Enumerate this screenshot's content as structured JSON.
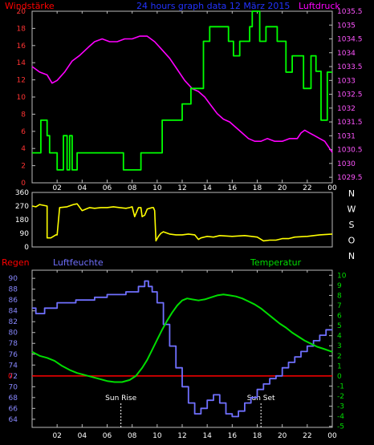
{
  "header": {
    "left_label": "Windstärke",
    "title": "24 hours graph data  12 März 2015",
    "right_label": "Luftdruck"
  },
  "lower_header": {
    "rain_label": "Regen",
    "humidity_label": "Luftfeuchte",
    "temperature_label": "Temperatur"
  },
  "colors": {
    "wind_speed": "#00ff00",
    "pressure": "#ff00ff",
    "wind_dir": "#ffff00",
    "humidity": "#7070ff",
    "temperature": "#00dd00",
    "rain": "#ff0000",
    "axis": "#ffffff",
    "frame": "#bbbbbb",
    "sun_marker": "#ffffff"
  },
  "chart_data": [
    {
      "id": "wind-pressure",
      "type": "line",
      "x_ticks": [
        "02",
        "04",
        "06",
        "08",
        "10",
        "12",
        "14",
        "16",
        "18",
        "20",
        "22",
        "00"
      ],
      "y_left": {
        "label": "Windstärke",
        "range": [
          0,
          20
        ],
        "ticks": [
          "0",
          "2",
          "4",
          "6",
          "8",
          "10",
          "12",
          "14",
          "16",
          "18",
          "20"
        ]
      },
      "y_right": {
        "label": "Luftdruck",
        "range": [
          1029.3,
          1035.5
        ],
        "ticks": [
          "1029.5",
          "1030",
          "1030.5",
          "1031",
          "1031.5",
          "1032",
          "1032.5",
          "1033",
          "1033.5",
          "1034",
          "1034.5",
          "1035",
          "1035.5"
        ]
      },
      "series": [
        {
          "axis": "left",
          "kind": "step",
          "x": [
            0,
            0.7,
            0.7,
            1.2,
            1.2,
            1.4,
            1.4,
            2.0,
            2.0,
            2.5,
            2.5,
            2.8,
            2.8,
            3.0,
            3.0,
            3.2,
            3.2,
            3.6,
            3.6,
            7.3,
            7.3,
            8.7,
            8.7,
            10.4,
            10.4,
            12.0,
            12.0,
            12.7,
            12.7,
            13.7,
            13.7,
            14.2,
            14.2,
            15.7,
            15.7,
            16.1,
            16.1,
            16.6,
            16.6,
            17.4,
            17.4,
            17.6,
            17.6,
            18.2,
            18.2,
            18.7,
            18.7,
            19.6,
            19.6,
            20.3,
            20.3,
            20.8,
            20.8,
            21.7,
            21.7,
            22.3,
            22.3,
            22.7,
            22.7,
            23.1,
            23.1,
            23.6,
            23.6,
            24
          ],
          "y": [
            3.5,
            3.5,
            7.3,
            7.3,
            5.5,
            5.5,
            3.5,
            3.5,
            1.5,
            1.5,
            5.5,
            5.5,
            1.5,
            1.5,
            5.5,
            5.5,
            1.5,
            1.5,
            3.5,
            3.5,
            1.5,
            1.5,
            3.5,
            3.5,
            7.3,
            7.3,
            9.2,
            9.2,
            11.0,
            11.0,
            16.5,
            16.5,
            18.2,
            18.2,
            16.5,
            16.5,
            14.8,
            14.8,
            16.5,
            16.5,
            18.2,
            18.2,
            20.0,
            20.0,
            16.5,
            16.5,
            18.2,
            18.2,
            16.5,
            16.5,
            12.9,
            12.9,
            14.8,
            14.8,
            11.0,
            11.0,
            14.8,
            14.8,
            13.0,
            13.0,
            7.3,
            7.3,
            12.9,
            12.9
          ]
        },
        {
          "axis": "right",
          "kind": "line",
          "x": [
            0,
            0.6,
            1.2,
            1.6,
            2.0,
            2.6,
            3.2,
            3.8,
            4.5,
            5.0,
            5.6,
            6.2,
            6.8,
            7.4,
            8.0,
            8.6,
            9.2,
            9.8,
            10.4,
            11.0,
            11.6,
            12.2,
            12.8,
            13.3,
            13.8,
            14.3,
            14.8,
            15.3,
            15.8,
            16.3,
            16.8,
            17.3,
            17.8,
            18.3,
            18.8,
            19.4,
            20.0,
            20.6,
            21.2,
            21.5,
            21.8,
            22.2,
            22.6,
            23.0,
            23.4,
            23.7,
            24.0
          ],
          "y": [
            1033.5,
            1033.3,
            1033.2,
            1032.9,
            1033.0,
            1033.3,
            1033.7,
            1033.9,
            1034.2,
            1034.4,
            1034.5,
            1034.4,
            1034.4,
            1034.5,
            1034.5,
            1034.6,
            1034.6,
            1034.4,
            1034.1,
            1033.8,
            1033.4,
            1033.0,
            1032.7,
            1032.6,
            1032.4,
            1032.1,
            1031.8,
            1031.6,
            1031.5,
            1031.3,
            1031.1,
            1030.9,
            1030.8,
            1030.8,
            1030.9,
            1030.8,
            1030.8,
            1030.9,
            1030.9,
            1031.1,
            1031.2,
            1031.1,
            1031.0,
            1030.9,
            1030.8,
            1030.6,
            1030.4
          ]
        }
      ]
    },
    {
      "id": "wind-direction",
      "type": "line",
      "x_ticks": [
        "02",
        "04",
        "06",
        "08",
        "10",
        "12",
        "14",
        "16",
        "18",
        "20",
        "22",
        "00"
      ],
      "y_left": {
        "range": [
          0,
          360
        ],
        "ticks": [
          "0",
          "90",
          "180",
          "270",
          "360"
        ]
      },
      "y_right": {
        "ticks": [
          "N",
          "W",
          "S",
          "O",
          "N"
        ]
      },
      "series": [
        {
          "x": [
            0,
            0.3,
            0.6,
            1.2,
            1.2,
            1.5,
            1.9,
            2.0,
            2.2,
            2.8,
            3.3,
            3.6,
            4.0,
            4.3,
            4.6,
            5.0,
            5.5,
            6.0,
            6.5,
            7.0,
            7.5,
            7.8,
            8.0,
            8.2,
            8.5,
            8.7,
            8.8,
            9.0,
            9.2,
            9.4,
            9.6,
            9.7,
            9.8,
            9.9,
            10.1,
            10.3,
            10.5,
            11.0,
            11.5,
            12.0,
            12.5,
            13.0,
            13.3,
            13.5,
            14.0,
            14.5,
            15.0,
            16.0,
            17.0,
            18.0,
            18.5,
            19.0,
            19.5,
            20.0,
            20.5,
            21.0,
            22.0,
            23.0,
            24.0
          ],
          "y": [
            270,
            265,
            280,
            270,
            60,
            60,
            80,
            80,
            260,
            265,
            280,
            285,
            240,
            250,
            260,
            255,
            260,
            260,
            265,
            260,
            255,
            260,
            265,
            200,
            260,
            260,
            200,
            210,
            250,
            255,
            260,
            260,
            240,
            40,
            70,
            90,
            100,
            85,
            80,
            80,
            85,
            80,
            50,
            60,
            70,
            65,
            75,
            70,
            75,
            65,
            40,
            45,
            45,
            55,
            55,
            65,
            70,
            80,
            85
          ]
        }
      ]
    },
    {
      "id": "rain-humidity-temperature",
      "type": "line",
      "x_ticks": [
        "02",
        "04",
        "06",
        "08",
        "10",
        "12",
        "14",
        "16",
        "18",
        "20",
        "22",
        "00"
      ],
      "y_left": {
        "label": "Luftfeuchte",
        "range": [
          62.5,
          91.5
        ],
        "ticks": [
          "64",
          "66",
          "68",
          "70",
          "72",
          "74",
          "76",
          "78",
          "80",
          "82",
          "84",
          "86",
          "88",
          "90"
        ]
      },
      "y_right": {
        "label": "Temperatur",
        "range": [
          -5.1,
          10.5
        ],
        "ticks": [
          "-5",
          "-4",
          "-3",
          "-2",
          "-1",
          "0",
          "1",
          "2",
          "3",
          "4",
          "5",
          "6",
          "7",
          "8",
          "9",
          "10"
        ]
      },
      "rain_label": "0",
      "series": [
        {
          "name": "Luftfeuchte",
          "axis": "left",
          "kind": "step",
          "x": [
            0,
            0.3,
            0.3,
            1.0,
            1.0,
            2.0,
            2.0,
            3.5,
            3.5,
            5.0,
            5.0,
            6.0,
            6.0,
            7.5,
            7.5,
            8.5,
            8.5,
            9.0,
            9.0,
            9.3,
            9.3,
            9.6,
            9.6,
            10.0,
            10.0,
            10.5,
            10.5,
            11.0,
            11.0,
            11.5,
            11.5,
            12.0,
            12.0,
            12.5,
            12.5,
            13.0,
            13.0,
            13.5,
            13.5,
            14.0,
            14.0,
            14.5,
            14.5,
            15.0,
            15.0,
            15.5,
            15.5,
            16.0,
            16.0,
            16.5,
            16.5,
            17.0,
            17.0,
            17.5,
            17.5,
            18.0,
            18.0,
            18.5,
            18.5,
            19.0,
            19.0,
            19.5,
            19.5,
            20.0,
            20.0,
            20.5,
            20.5,
            21.0,
            21.0,
            21.5,
            21.5,
            22.0,
            22.0,
            22.5,
            22.5,
            23.0,
            23.0,
            23.5,
            23.5,
            24.0
          ],
          "y": [
            84.5,
            84.5,
            83.5,
            83.5,
            84.5,
            84.5,
            85.5,
            85.5,
            86.0,
            86.0,
            86.5,
            86.5,
            87.0,
            87.0,
            87.5,
            87.5,
            88.5,
            88.5,
            89.5,
            89.5,
            88.5,
            88.5,
            87.5,
            87.5,
            85.5,
            85.5,
            81.5,
            81.5,
            77.5,
            77.5,
            73.5,
            73.5,
            70.0,
            70.0,
            67.0,
            67.0,
            65.0,
            65.0,
            66.0,
            66.0,
            67.5,
            67.5,
            68.5,
            68.5,
            67.0,
            67.0,
            65.0,
            65.0,
            64.5,
            64.5,
            65.5,
            65.5,
            67.0,
            67.0,
            68.0,
            68.0,
            69.5,
            69.5,
            70.5,
            70.5,
            71.5,
            71.5,
            72.0,
            72.0,
            73.5,
            73.5,
            74.5,
            74.5,
            75.5,
            75.5,
            76.5,
            76.5,
            77.5,
            77.5,
            78.5,
            78.5,
            79.5,
            79.5,
            80.5,
            80.5
          ]
        },
        {
          "name": "Temperatur",
          "axis": "right",
          "kind": "line",
          "x": [
            0,
            0.6,
            1.2,
            1.8,
            2.4,
            3.0,
            3.6,
            4.2,
            4.8,
            5.4,
            6.0,
            6.6,
            7.2,
            7.8,
            8.3,
            8.8,
            9.2,
            9.6,
            10.0,
            10.4,
            10.8,
            11.2,
            11.6,
            12.0,
            12.4,
            12.8,
            13.3,
            13.8,
            14.3,
            14.8,
            15.3,
            15.8,
            16.3,
            16.8,
            17.3,
            17.8,
            18.3,
            18.8,
            19.3,
            19.8,
            20.3,
            20.8,
            21.3,
            21.8,
            22.3,
            22.8,
            23.3,
            24.0
          ],
          "y": [
            2.4,
            2.0,
            1.8,
            1.5,
            1.0,
            0.6,
            0.3,
            0.1,
            -0.1,
            -0.3,
            -0.5,
            -0.6,
            -0.6,
            -0.4,
            0.0,
            0.8,
            1.6,
            2.6,
            3.6,
            4.6,
            5.5,
            6.3,
            7.0,
            7.5,
            7.7,
            7.6,
            7.5,
            7.6,
            7.8,
            8.0,
            8.1,
            8.0,
            7.9,
            7.7,
            7.4,
            7.1,
            6.7,
            6.2,
            5.7,
            5.2,
            4.8,
            4.3,
            3.9,
            3.5,
            3.2,
            2.9,
            2.7,
            2.4
          ]
        }
      ],
      "annotations": [
        {
          "label": "Sun Rise",
          "x": 7.1
        },
        {
          "label": "Sun Set",
          "x": 18.3
        }
      ]
    }
  ]
}
